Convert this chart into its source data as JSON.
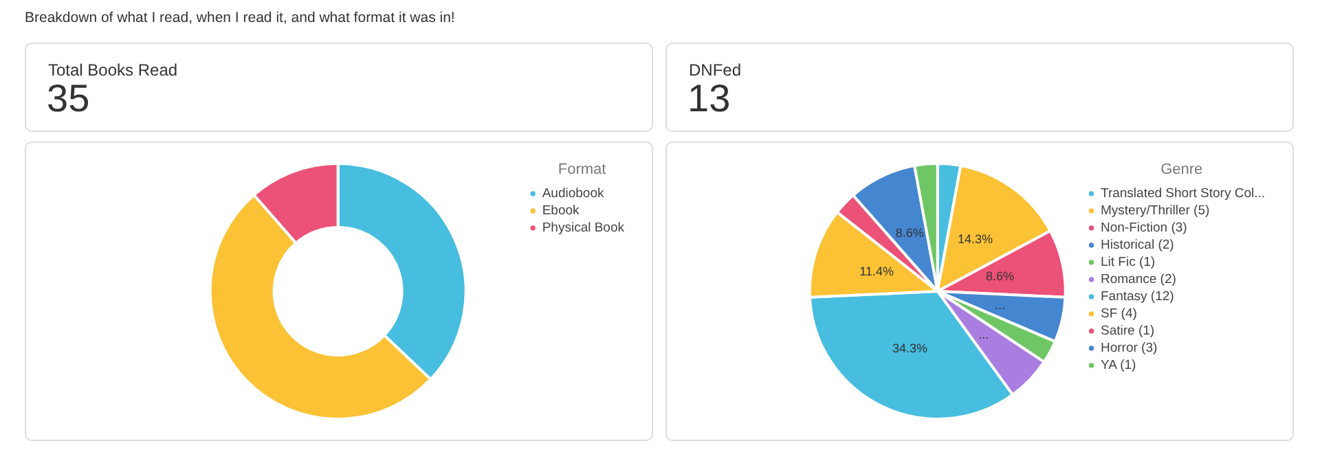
{
  "chart_data": [
    {
      "type": "other",
      "title": "Breakdown of what I read, when I read it, and what format it was in!"
    },
    {
      "type": "other",
      "title": "Total Books Read",
      "annotations": [
        "35"
      ]
    },
    {
      "type": "other",
      "title": "DNFed",
      "annotations": [
        "13"
      ]
    },
    {
      "type": "donut",
      "legend_title": "Format",
      "legend": "right",
      "categories": [
        "Audiobook",
        "Ebook",
        "Physical Book"
      ],
      "values": [
        37.1,
        51.5,
        11.4
      ],
      "colors": [
        "#47bddf",
        "#fbc235",
        "#ec5177"
      ]
    },
    {
      "type": "pie",
      "legend_title": "Genre",
      "legend": "right",
      "categories": [
        "Translated Short Story Col...",
        "Mystery/Thriller (5)",
        "Non-Fiction (3)",
        "Historical (2)",
        "Lit Fic (1)",
        "Romance (2)",
        "Fantasy (12)",
        "SF (4)",
        "Satire (1)",
        "Horror (3)",
        "YA (1)"
      ],
      "values": [
        2.9,
        14.3,
        8.6,
        5.7,
        2.9,
        5.7,
        34.3,
        11.4,
        2.9,
        8.6,
        2.9
      ],
      "value_labels": [
        null,
        "14.3%",
        "8.6%",
        "...",
        null,
        "...",
        "34.3%",
        "11.4%",
        null,
        "8.6%",
        null
      ],
      "colors": [
        "#47bddf",
        "#fbc235",
        "#ec5177",
        "#4586d0",
        "#6ec664",
        "#a97ee0",
        "#47bddf",
        "#fbc235",
        "#ec5177",
        "#4586d0",
        "#6ec664"
      ]
    }
  ]
}
